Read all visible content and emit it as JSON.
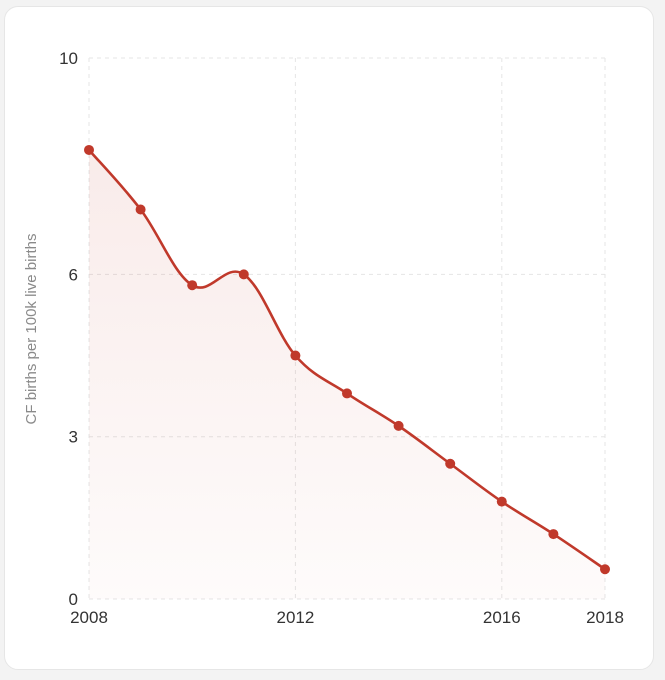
{
  "chart_data": {
    "type": "area",
    "ylabel": "CF births per 100k live births",
    "xlabel": "",
    "title": "",
    "xlim": [
      2008,
      2018
    ],
    "ylim": [
      0,
      10
    ],
    "x_ticks": [
      "2008",
      "2012",
      "2016",
      "2018"
    ],
    "y_ticks": [
      "0",
      "3",
      "6",
      "10"
    ],
    "x_tick_values": [
      2008,
      2012,
      2016,
      2018
    ],
    "y_tick_values": [
      0,
      3,
      6,
      10
    ],
    "grid": true,
    "series": [
      {
        "x": [
          2008,
          2009,
          2010,
          2011,
          2012,
          2013,
          2014,
          2015,
          2016,
          2017,
          2018
        ],
        "y": [
          8.3,
          7.2,
          5.8,
          6.0,
          4.5,
          3.8,
          3.2,
          2.5,
          1.8,
          1.2,
          0.55
        ]
      }
    ],
    "colors": {
      "line": "#c0392b",
      "fill": "#c0392b",
      "grid": "#e5e5e5"
    }
  }
}
